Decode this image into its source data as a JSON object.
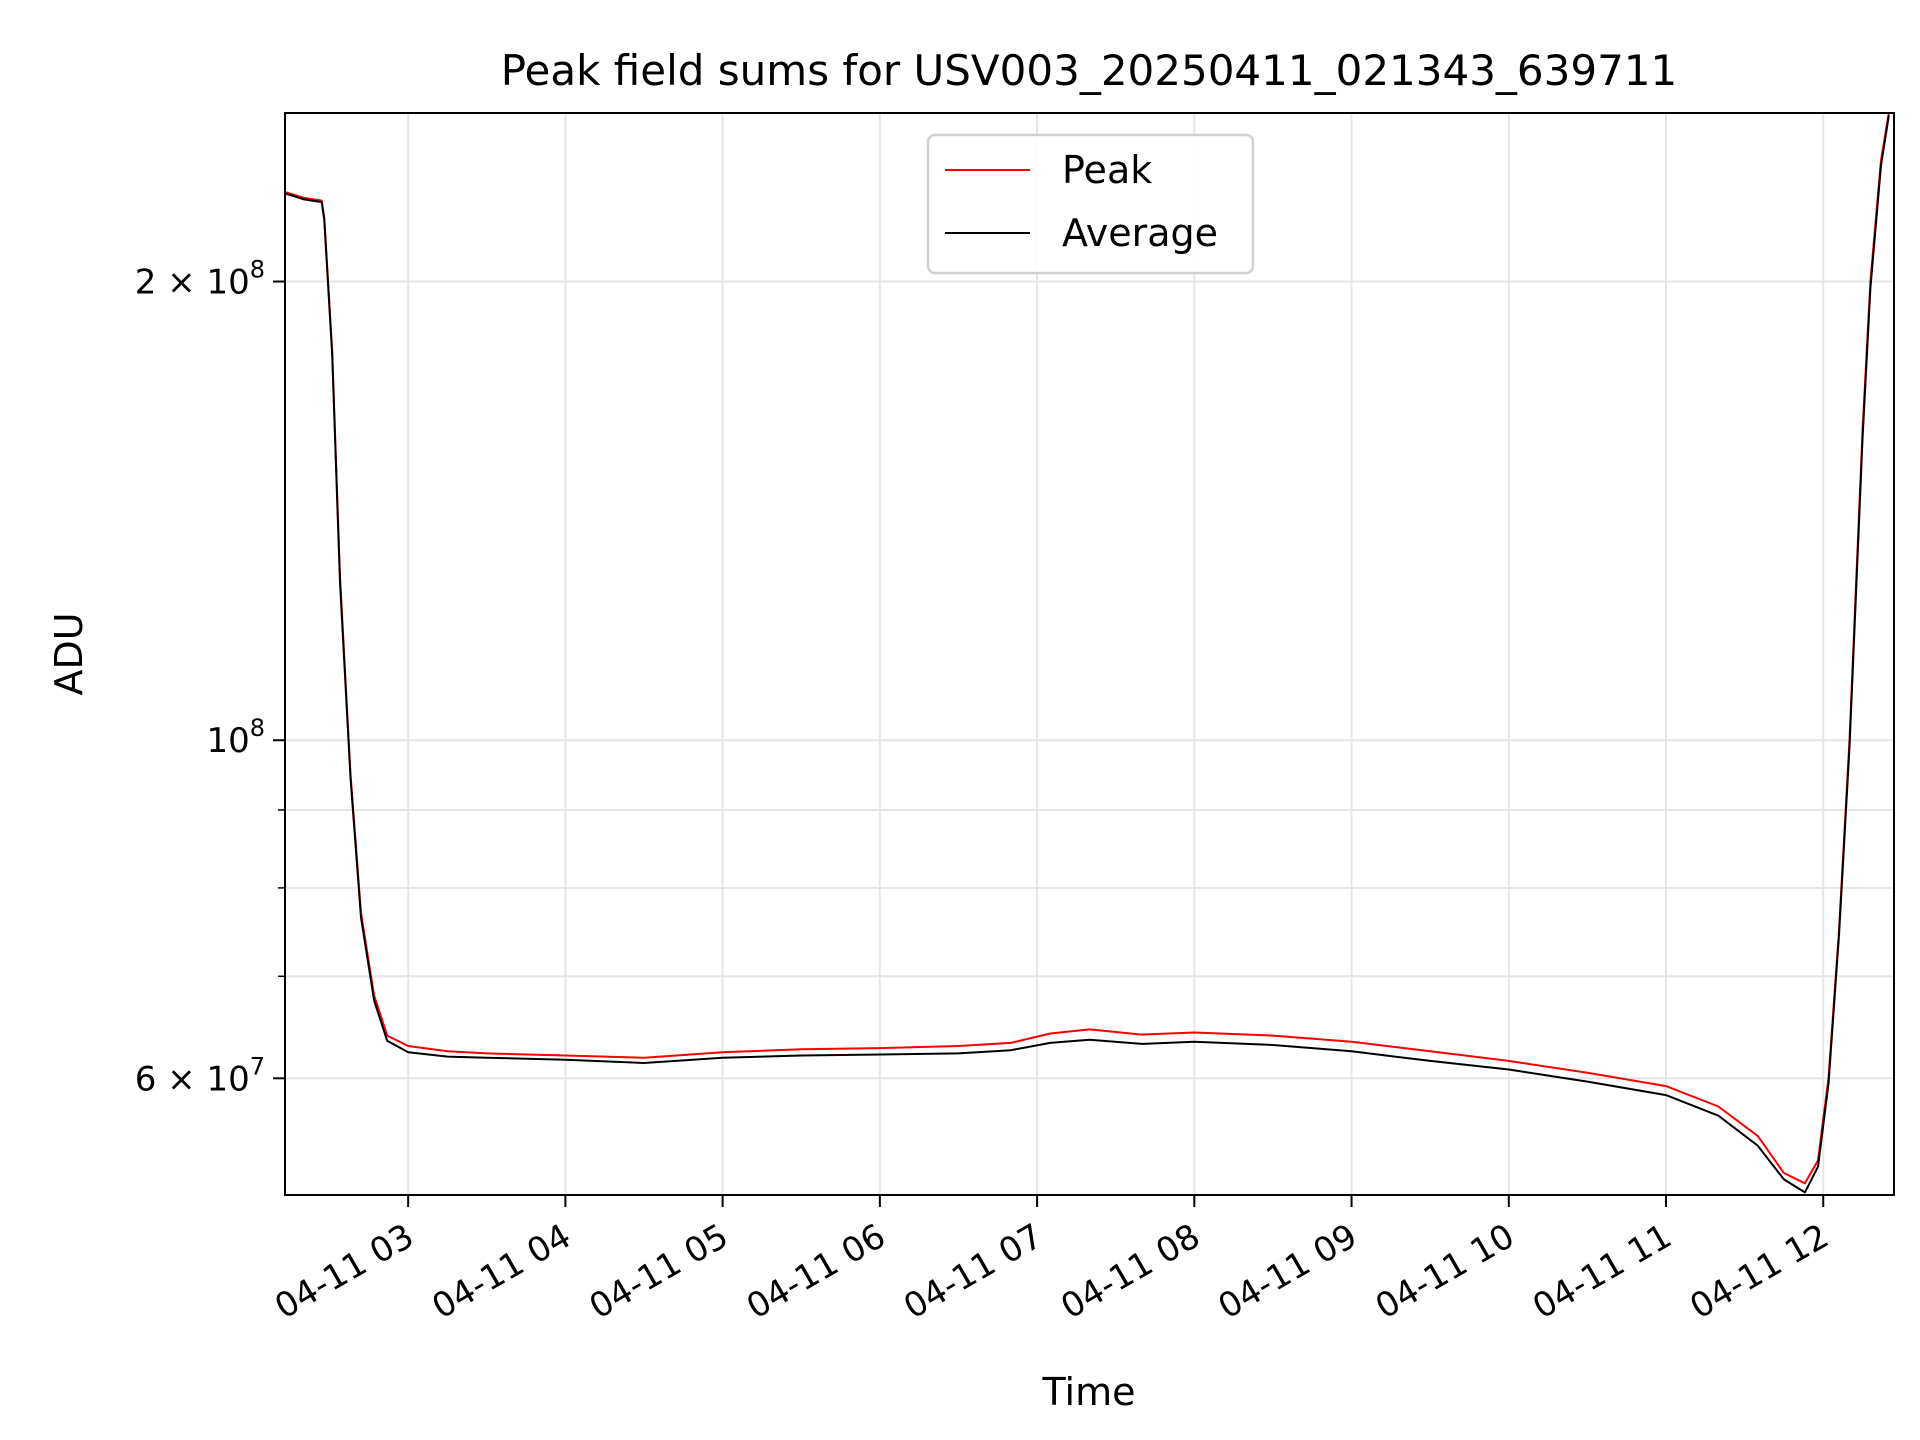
{
  "chart_data": {
    "type": "line",
    "title": "Peak field sums for USV003_20250411_021343_639711",
    "xlabel": "Time",
    "ylabel": "ADU",
    "y_scale": "log",
    "ylim": [
      50300000,
      258000000
    ],
    "xlim": [
      "2025-04-11 02:13",
      "2025-04-11 12:27"
    ],
    "grid": true,
    "legend_position": "upper center",
    "x_ticks": [
      {
        "t": "2025-04-11 03:00",
        "label": "04-11 03"
      },
      {
        "t": "2025-04-11 04:00",
        "label": "04-11 04"
      },
      {
        "t": "2025-04-11 05:00",
        "label": "04-11 05"
      },
      {
        "t": "2025-04-11 06:00",
        "label": "04-11 06"
      },
      {
        "t": "2025-04-11 07:00",
        "label": "04-11 07"
      },
      {
        "t": "2025-04-11 08:00",
        "label": "04-11 08"
      },
      {
        "t": "2025-04-11 09:00",
        "label": "04-11 09"
      },
      {
        "t": "2025-04-11 10:00",
        "label": "04-11 10"
      },
      {
        "t": "2025-04-11 11:00",
        "label": "04-11 11"
      },
      {
        "t": "2025-04-11 12:00",
        "label": "04-11 12"
      }
    ],
    "y_major_ticks": [
      {
        "value": 60000000,
        "mantissa": "6 × 10",
        "exp": "7"
      },
      {
        "value": 100000000,
        "mantissa": "10",
        "exp": "8"
      },
      {
        "value": 200000000,
        "mantissa": "2 × 10",
        "exp": "8"
      }
    ],
    "y_minor_ticks": [
      70000000,
      80000000,
      90000000
    ],
    "series": [
      {
        "name": "Peak",
        "color": "#ff0000",
        "points": [
          [
            "2025-04-11 02:13",
            229000000
          ],
          [
            "2025-04-11 02:20",
            227000000
          ],
          [
            "2025-04-11 02:27",
            226000000
          ],
          [
            "2025-04-11 02:28",
            220000000
          ],
          [
            "2025-04-11 02:31",
            180000000
          ],
          [
            "2025-04-11 02:34",
            128000000
          ],
          [
            "2025-04-11 02:38",
            95000000
          ],
          [
            "2025-04-11 02:42",
            77000000
          ],
          [
            "2025-04-11 02:47",
            68000000
          ],
          [
            "2025-04-11 02:52",
            64000000
          ],
          [
            "2025-04-11 03:00",
            63000000
          ],
          [
            "2025-04-11 03:15",
            62500000
          ],
          [
            "2025-04-11 03:30",
            62300000
          ],
          [
            "2025-04-11 04:00",
            62100000
          ],
          [
            "2025-04-11 04:30",
            61900000
          ],
          [
            "2025-04-11 05:00",
            62400000
          ],
          [
            "2025-04-11 05:30",
            62700000
          ],
          [
            "2025-04-11 06:00",
            62800000
          ],
          [
            "2025-04-11 06:30",
            63000000
          ],
          [
            "2025-04-11 06:50",
            63300000
          ],
          [
            "2025-04-11 07:05",
            64200000
          ],
          [
            "2025-04-11 07:20",
            64600000
          ],
          [
            "2025-04-11 07:40",
            64100000
          ],
          [
            "2025-04-11 08:00",
            64300000
          ],
          [
            "2025-04-11 08:30",
            64000000
          ],
          [
            "2025-04-11 09:00",
            63400000
          ],
          [
            "2025-04-11 09:30",
            62500000
          ],
          [
            "2025-04-11 10:00",
            61600000
          ],
          [
            "2025-04-11 10:30",
            60500000
          ],
          [
            "2025-04-11 11:00",
            59300000
          ],
          [
            "2025-04-11 11:20",
            57500000
          ],
          [
            "2025-04-11 11:35",
            55000000
          ],
          [
            "2025-04-11 11:45",
            52000000
          ],
          [
            "2025-04-11 11:53",
            51200000
          ],
          [
            "2025-04-11 11:58",
            53000000
          ],
          [
            "2025-04-11 12:02",
            60000000
          ],
          [
            "2025-04-11 12:06",
            75000000
          ],
          [
            "2025-04-11 12:10",
            100000000
          ],
          [
            "2025-04-11 12:15",
            160000000
          ],
          [
            "2025-04-11 12:18",
            200000000
          ],
          [
            "2025-04-11 12:22",
            240000000
          ],
          [
            "2025-04-11 12:25",
            258000000
          ]
        ]
      },
      {
        "name": "Average",
        "color": "#000000",
        "points": [
          [
            "2025-04-11 02:13",
            228500000
          ],
          [
            "2025-04-11 02:20",
            226500000
          ],
          [
            "2025-04-11 02:27",
            225500000
          ],
          [
            "2025-04-11 02:28",
            219500000
          ],
          [
            "2025-04-11 02:31",
            179000000
          ],
          [
            "2025-04-11 02:34",
            127000000
          ],
          [
            "2025-04-11 02:38",
            94500000
          ],
          [
            "2025-04-11 02:42",
            76500000
          ],
          [
            "2025-04-11 02:47",
            67500000
          ],
          [
            "2025-04-11 02:52",
            63500000
          ],
          [
            "2025-04-11 03:00",
            62400000
          ],
          [
            "2025-04-11 03:15",
            62000000
          ],
          [
            "2025-04-11 03:30",
            61900000
          ],
          [
            "2025-04-11 04:00",
            61700000
          ],
          [
            "2025-04-11 04:30",
            61400000
          ],
          [
            "2025-04-11 05:00",
            61900000
          ],
          [
            "2025-04-11 05:30",
            62100000
          ],
          [
            "2025-04-11 06:00",
            62200000
          ],
          [
            "2025-04-11 06:30",
            62300000
          ],
          [
            "2025-04-11 06:50",
            62600000
          ],
          [
            "2025-04-11 07:05",
            63300000
          ],
          [
            "2025-04-11 07:20",
            63600000
          ],
          [
            "2025-04-11 07:40",
            63200000
          ],
          [
            "2025-04-11 08:00",
            63400000
          ],
          [
            "2025-04-11 08:30",
            63100000
          ],
          [
            "2025-04-11 09:00",
            62500000
          ],
          [
            "2025-04-11 09:30",
            61600000
          ],
          [
            "2025-04-11 10:00",
            60800000
          ],
          [
            "2025-04-11 10:30",
            59700000
          ],
          [
            "2025-04-11 11:00",
            58500000
          ],
          [
            "2025-04-11 11:20",
            56700000
          ],
          [
            "2025-04-11 11:35",
            54200000
          ],
          [
            "2025-04-11 11:45",
            51500000
          ],
          [
            "2025-04-11 11:53",
            50500000
          ],
          [
            "2025-04-11 11:58",
            52500000
          ],
          [
            "2025-04-11 12:02",
            59500000
          ],
          [
            "2025-04-11 12:06",
            74500000
          ],
          [
            "2025-04-11 12:10",
            99000000
          ],
          [
            "2025-04-11 12:15",
            158000000
          ],
          [
            "2025-04-11 12:18",
            198000000
          ],
          [
            "2025-04-11 12:22",
            238000000
          ],
          [
            "2025-04-11 12:25",
            257000000
          ]
        ]
      }
    ]
  }
}
